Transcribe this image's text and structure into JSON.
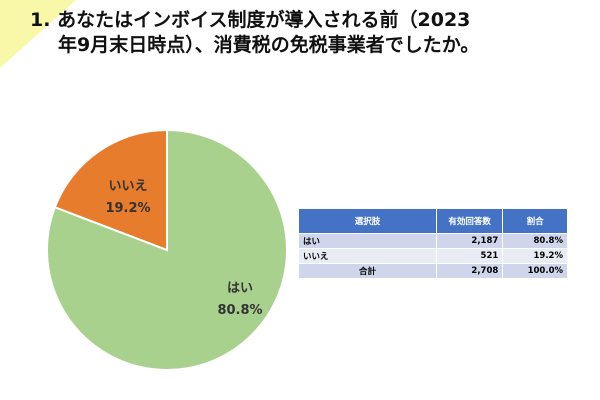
{
  "title": {
    "number": "1.",
    "line1": "あなたはインボイス制度が導入される前（2023",
    "line2": "年9月末日時点）、消費税の免税事業者でしたか。"
  },
  "chart_data": {
    "type": "pie",
    "categories": [
      "はい",
      "いいえ"
    ],
    "values": [
      80.8,
      19.2
    ],
    "labels": [
      "80.8%",
      "19.2%"
    ],
    "colors": [
      "#a9d18e",
      "#e67c2c"
    ]
  },
  "table": {
    "headers": [
      "選択肢",
      "有効回答数",
      "割合"
    ],
    "rows": [
      [
        "はい",
        "2,187",
        "80.8%"
      ],
      [
        "いいえ",
        "521",
        "19.2%"
      ],
      [
        "合計",
        "2,708",
        "100.0%"
      ]
    ]
  }
}
